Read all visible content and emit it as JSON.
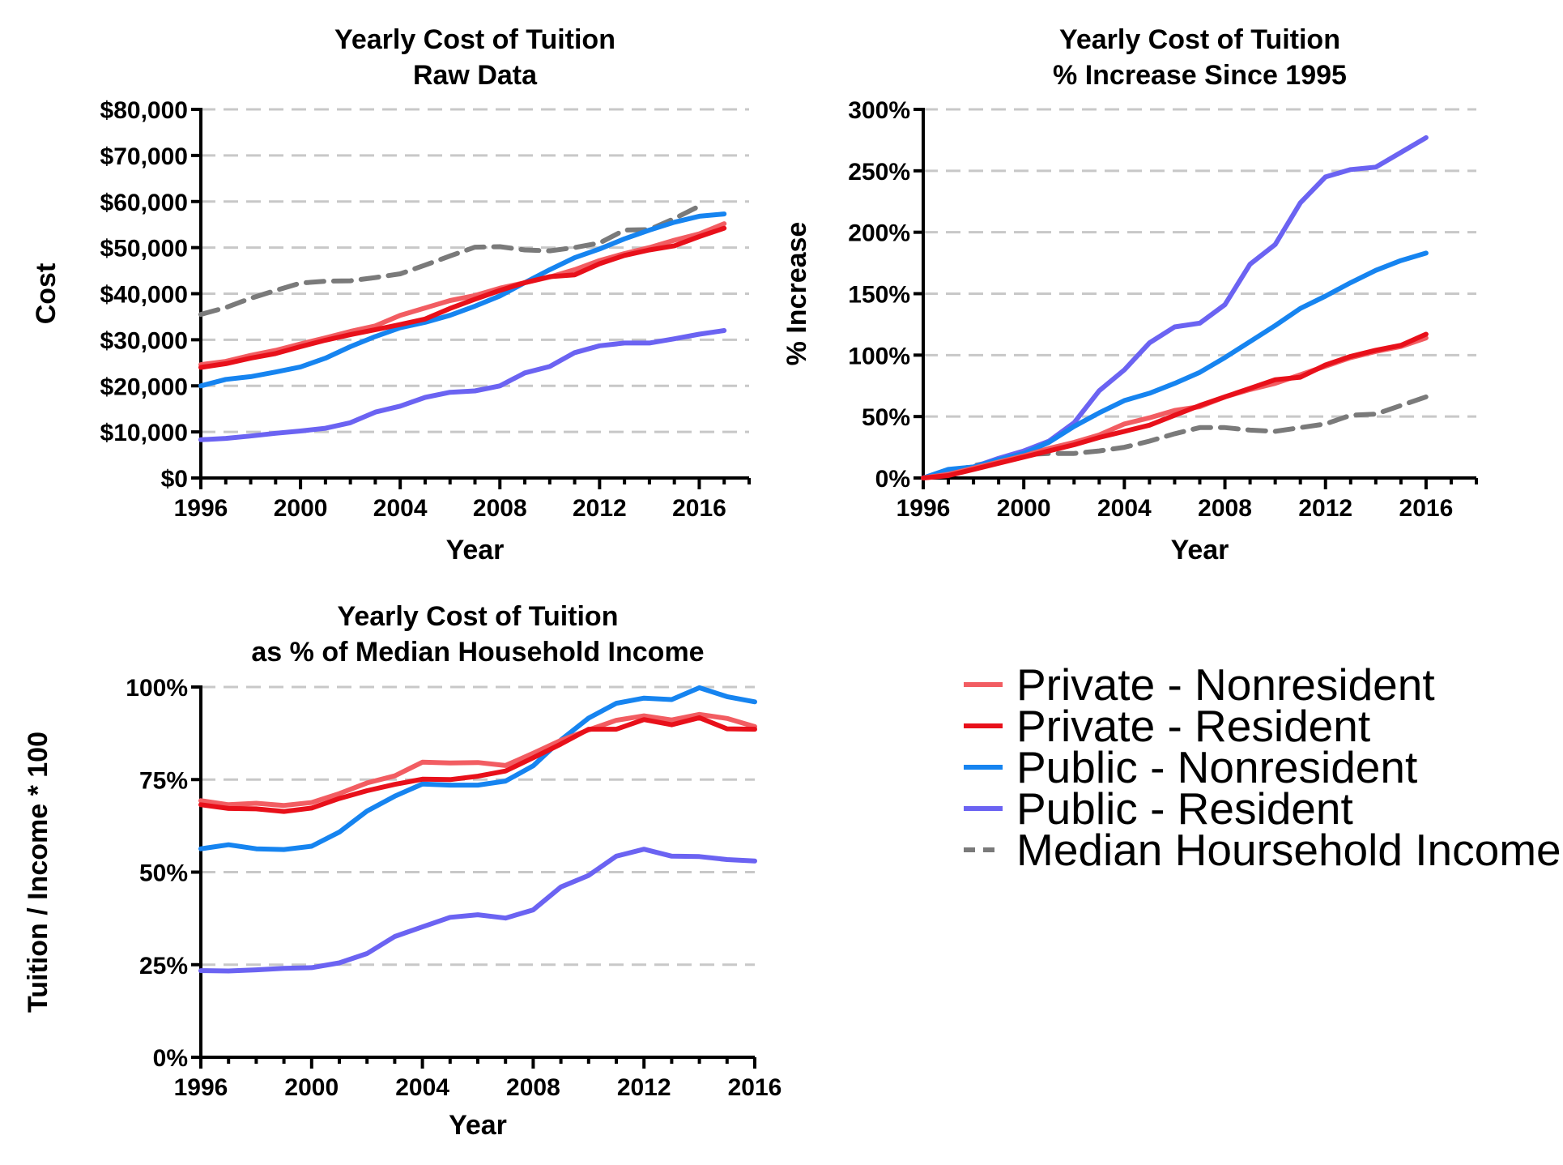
{
  "colors": {
    "private_nonresident": "#f25d62",
    "private_resident": "#e8101a",
    "public_nonresident": "#1684f0",
    "public_resident": "#6b63f2",
    "median_income": "#7a7a7a"
  },
  "legend": {
    "items": [
      {
        "label": "Private - Nonresident",
        "series_key": "private_nonresident",
        "dashed": false
      },
      {
        "label": "Private - Resident",
        "series_key": "private_resident",
        "dashed": false
      },
      {
        "label": "Public - Nonresident",
        "series_key": "public_nonresident",
        "dashed": false
      },
      {
        "label": "Public - Resident",
        "series_key": "public_resident",
        "dashed": false
      },
      {
        "label": "Median Hoursehold Income",
        "series_key": "median_income",
        "dashed": true
      }
    ]
  },
  "chart_data": [
    {
      "type": "line",
      "title": [
        "Yearly Cost of Tuition",
        "Raw Data"
      ],
      "xlabel": "Year",
      "ylabel": "Cost",
      "xlim": [
        1996,
        2018
      ],
      "ylim": [
        0,
        80000
      ],
      "xticks": [
        1996,
        2000,
        2004,
        2008,
        2012,
        2016
      ],
      "xtick_labels": [
        "1996",
        "2000",
        "2004",
        "2008",
        "2012",
        "2016"
      ],
      "yticks": [
        0,
        10000,
        20000,
        30000,
        40000,
        50000,
        60000,
        70000,
        80000
      ],
      "ytick_labels": [
        "$0",
        "$10,000",
        "$20,000",
        "$30,000",
        "$40,000",
        "$50,000",
        "$60,000",
        "$70,000",
        "$80,000"
      ],
      "grid": true,
      "series": [
        {
          "key": "median_income",
          "dashed": true,
          "x": [
            1996,
            1997,
            1998,
            1999,
            2000,
            2001,
            2002,
            2003,
            2004,
            2005,
            2006,
            2007,
            2008,
            2009,
            2010,
            2011,
            2012,
            2013,
            2014,
            2015,
            2016
          ],
          "values": [
            35500,
            37000,
            39000,
            40700,
            42300,
            42700,
            42800,
            43500,
            44300,
            46200,
            48200,
            50100,
            50200,
            49500,
            49300,
            50000,
            51000,
            53800,
            53900,
            56300,
            59000
          ]
        },
        {
          "key": "public_resident",
          "dashed": false,
          "x": [
            1996,
            1997,
            1998,
            1999,
            2000,
            2001,
            2002,
            2003,
            2004,
            2005,
            2006,
            2007,
            2008,
            2009,
            2010,
            2011,
            2012,
            2013,
            2014,
            2015,
            2016,
            2017
          ],
          "values": [
            8300,
            8600,
            9100,
            9700,
            10200,
            10800,
            12000,
            14300,
            15600,
            17500,
            18600,
            18900,
            20000,
            22800,
            24200,
            27200,
            28700,
            29300,
            29300,
            30200,
            31200,
            32000
          ]
        },
        {
          "key": "public_nonresident",
          "dashed": false,
          "x": [
            1996,
            1997,
            1998,
            1999,
            2000,
            2001,
            2002,
            2003,
            2004,
            2005,
            2006,
            2007,
            2008,
            2009,
            2010,
            2011,
            2012,
            2013,
            2014,
            2015,
            2016,
            2017
          ],
          "values": [
            20000,
            21400,
            22000,
            23000,
            24100,
            26000,
            28500,
            30700,
            32600,
            33800,
            35300,
            37300,
            39500,
            42400,
            45200,
            47800,
            49700,
            51900,
            53800,
            55500,
            56800,
            57300
          ]
        },
        {
          "key": "private_nonresident",
          "dashed": false,
          "x": [
            1996,
            1997,
            1998,
            1999,
            2000,
            2001,
            2002,
            2003,
            2004,
            2005,
            2006,
            2007,
            2008,
            2009,
            2010,
            2011,
            2012,
            2013,
            2014,
            2015,
            2016,
            2017
          ],
          "values": [
            24600,
            25300,
            26600,
            27700,
            29100,
            30400,
            31800,
            33000,
            35300,
            36900,
            38500,
            39600,
            41200,
            42400,
            43600,
            45200,
            47200,
            48700,
            50000,
            51600,
            53000,
            55200
          ]
        },
        {
          "key": "private_resident",
          "dashed": false,
          "x": [
            1996,
            1997,
            1998,
            1999,
            2000,
            2001,
            2002,
            2003,
            2004,
            2005,
            2006,
            2007,
            2008,
            2009,
            2010,
            2011,
            2012,
            2013,
            2014,
            2015,
            2016,
            2017
          ],
          "values": [
            24000,
            24800,
            26000,
            27000,
            28500,
            29900,
            31100,
            32200,
            33300,
            34500,
            36800,
            38800,
            40700,
            42400,
            43700,
            44100,
            46500,
            48300,
            49500,
            50400,
            52400,
            54200
          ]
        }
      ]
    },
    {
      "type": "line",
      "title": [
        "Yearly Cost of Tuition",
        "% Increase Since 1995"
      ],
      "xlabel": "Year",
      "ylabel": "% Increase",
      "xlim": [
        1996,
        2018
      ],
      "ylim": [
        0,
        300
      ],
      "xticks": [
        1996,
        2000,
        2004,
        2008,
        2012,
        2016
      ],
      "xtick_labels": [
        "1996",
        "2000",
        "2004",
        "2008",
        "2012",
        "2016"
      ],
      "yticks": [
        0,
        50,
        100,
        150,
        200,
        250,
        300
      ],
      "ytick_labels": [
        "0%",
        "50%",
        "100%",
        "150%",
        "200%",
        "250%",
        "300%"
      ],
      "grid": true,
      "series": [
        {
          "key": "median_income",
          "dashed": true,
          "x": [
            1996,
            1997,
            1998,
            1999,
            2000,
            2001,
            2002,
            2003,
            2004,
            2005,
            2006,
            2007,
            2008,
            2009,
            2010,
            2011,
            2012,
            2013,
            2014,
            2015,
            2016
          ],
          "values": [
            0,
            4,
            10,
            14,
            19,
            20,
            20,
            22,
            25,
            30,
            36,
            41,
            41,
            39,
            38,
            41,
            44,
            51,
            52,
            59,
            66
          ]
        },
        {
          "key": "public_resident",
          "dashed": false,
          "x": [
            1996,
            1997,
            1998,
            1999,
            2000,
            2001,
            2002,
            2003,
            2004,
            2005,
            2006,
            2007,
            2008,
            2009,
            2010,
            2011,
            2012,
            2013,
            2014,
            2015,
            2016
          ],
          "values": [
            0,
            6,
            9,
            16,
            22,
            30,
            45,
            71,
            88,
            110,
            123,
            126,
            141,
            174,
            190,
            224,
            245,
            251,
            253,
            265,
            277
          ]
        },
        {
          "key": "public_nonresident",
          "dashed": false,
          "x": [
            1996,
            1997,
            1998,
            1999,
            2000,
            2001,
            2002,
            2003,
            2004,
            2005,
            2006,
            2007,
            2008,
            2009,
            2010,
            2011,
            2012,
            2013,
            2014,
            2015,
            2016
          ],
          "values": [
            0,
            7,
            9,
            15,
            20,
            29,
            42,
            53,
            63,
            69,
            77,
            86,
            98,
            111,
            124,
            138,
            148,
            159,
            169,
            177,
            183
          ]
        },
        {
          "key": "private_nonresident",
          "dashed": false,
          "x": [
            1996,
            1997,
            1998,
            1999,
            2000,
            2001,
            2002,
            2003,
            2004,
            2005,
            2006,
            2007,
            2008,
            2009,
            2010,
            2011,
            2012,
            2013,
            2014,
            2015,
            2016
          ],
          "values": [
            0,
            3,
            8,
            13,
            18,
            24,
            29,
            35,
            44,
            49,
            55,
            58,
            66,
            72,
            77,
            84,
            91,
            98,
            103,
            107,
            114
          ]
        },
        {
          "key": "private_resident",
          "dashed": false,
          "x": [
            1996,
            1997,
            1998,
            1999,
            2000,
            2001,
            2002,
            2003,
            2004,
            2005,
            2006,
            2007,
            2008,
            2009,
            2010,
            2011,
            2012,
            2013,
            2014,
            2015,
            2016
          ],
          "values": [
            0,
            2,
            7,
            12,
            17,
            22,
            27,
            33,
            38,
            43,
            51,
            59,
            66,
            73,
            80,
            82,
            92,
            99,
            104,
            108,
            117
          ]
        }
      ]
    },
    {
      "type": "line",
      "title": [
        "Yearly Cost of Tuition",
        "as % of Median Household Income"
      ],
      "xlabel": "Year",
      "ylabel": "Tuition / Income * 100",
      "xlim": [
        1996,
        2016
      ],
      "ylim": [
        0,
        100
      ],
      "xticks": [
        1996,
        2000,
        2004,
        2008,
        2012,
        2016
      ],
      "xtick_labels": [
        "1996",
        "2000",
        "2004",
        "2008",
        "2012",
        "2016"
      ],
      "yticks": [
        0,
        25,
        50,
        75,
        100
      ],
      "ytick_labels": [
        "0%",
        "25%",
        "50%",
        "75%",
        "100%"
      ],
      "grid": true,
      "series": [
        {
          "key": "public_resident",
          "dashed": false,
          "x": [
            1996,
            1997,
            1998,
            1999,
            2000,
            2001,
            2002,
            2003,
            2004,
            2005,
            2006,
            2007,
            2008,
            2009,
            2010,
            2011,
            2012,
            2013,
            2014,
            2015,
            2016
          ],
          "values": [
            23.4,
            23.3,
            23.6,
            24.0,
            24.2,
            25.5,
            28.0,
            32.6,
            35.2,
            37.8,
            38.5,
            37.6,
            39.8,
            46.0,
            49.1,
            54.3,
            56.2,
            54.3,
            54.2,
            53.4,
            53.0
          ]
        },
        {
          "key": "public_nonresident",
          "dashed": false,
          "x": [
            1996,
            1997,
            1998,
            1999,
            2000,
            2001,
            2002,
            2003,
            2004,
            2005,
            2006,
            2007,
            2008,
            2009,
            2010,
            2011,
            2012,
            2013,
            2014,
            2015,
            2016
          ],
          "values": [
            56.3,
            57.4,
            56.3,
            56.1,
            57.0,
            60.8,
            66.5,
            70.5,
            73.8,
            73.5,
            73.5,
            74.6,
            78.7,
            85.7,
            91.6,
            95.6,
            97.0,
            96.6,
            99.8,
            97.4,
            96.0
          ]
        },
        {
          "key": "private_nonresident",
          "dashed": false,
          "x": [
            1996,
            1997,
            1998,
            1999,
            2000,
            2001,
            2002,
            2003,
            2004,
            2005,
            2006,
            2007,
            2008,
            2009,
            2010,
            2011,
            2012,
            2013,
            2014,
            2015,
            2016
          ],
          "values": [
            69.3,
            68.2,
            68.6,
            68.0,
            68.8,
            71.2,
            74.1,
            76.0,
            79.7,
            79.5,
            79.6,
            78.8,
            82.1,
            85.6,
            88.4,
            91.0,
            92.2,
            91.1,
            92.6,
            91.5,
            89.3
          ]
        },
        {
          "key": "private_resident",
          "dashed": false,
          "x": [
            1996,
            1997,
            1998,
            1999,
            2000,
            2001,
            2002,
            2003,
            2004,
            2005,
            2006,
            2007,
            2008,
            2009,
            2010,
            2011,
            2012,
            2013,
            2014,
            2015,
            2016
          ],
          "values": [
            68.2,
            67.2,
            67.1,
            66.4,
            67.3,
            69.9,
            72.0,
            73.7,
            75.1,
            75.0,
            75.9,
            77.3,
            80.9,
            84.6,
            88.6,
            88.6,
            91.2,
            89.8,
            91.7,
            88.7,
            88.6
          ]
        }
      ]
    }
  ]
}
